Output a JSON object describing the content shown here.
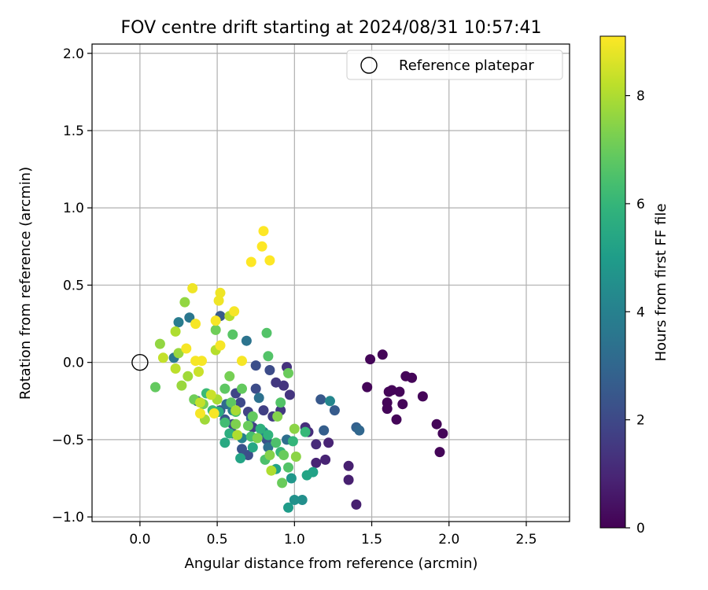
{
  "chart_data": {
    "type": "scatter",
    "title": "FOV centre drift starting at 2024/08/31 10:57:41",
    "xlabel": "Angular distance from reference (arcmin)",
    "ylabel": "Rotation from reference (arcmin)",
    "xlim": [
      -0.31,
      2.78
    ],
    "ylim": [
      -1.03,
      2.06
    ],
    "xticks": [
      0.0,
      0.5,
      1.0,
      1.5,
      2.0,
      2.5
    ],
    "xtick_labels": [
      "0.0",
      "0.5",
      "1.0",
      "1.5",
      "2.0",
      "2.5"
    ],
    "yticks": [
      -1.0,
      -0.5,
      0.0,
      0.5,
      1.0,
      1.5,
      2.0
    ],
    "ytick_labels": [
      "−1.0",
      "−0.5",
      "0.0",
      "0.5",
      "1.0",
      "1.5",
      "2.0"
    ],
    "grid": true,
    "legend": {
      "position": "top-right",
      "entries": [
        {
          "label": "Reference platepar",
          "marker": "open-circle"
        }
      ]
    },
    "reference_point": {
      "x": 0.0,
      "y": 0.0
    },
    "colorbar": {
      "label": "Hours from first FF file",
      "colormap": "viridis",
      "range": [
        0,
        9.1
      ],
      "ticks": [
        0,
        2,
        4,
        6,
        8
      ],
      "tick_labels": [
        "0",
        "2",
        "4",
        "6",
        "8"
      ]
    },
    "series": [
      {
        "color_by": "hours",
        "points": [
          {
            "x": 1.49,
            "y": 0.02,
            "c": 0.1
          },
          {
            "x": 1.57,
            "y": 0.05,
            "c": 0.1
          },
          {
            "x": 1.47,
            "y": -0.16,
            "c": 0.1
          },
          {
            "x": 1.61,
            "y": -0.19,
            "c": 0.1
          },
          {
            "x": 1.63,
            "y": -0.18,
            "c": 0.1
          },
          {
            "x": 1.68,
            "y": -0.19,
            "c": 0.1
          },
          {
            "x": 1.6,
            "y": -0.26,
            "c": 0.1
          },
          {
            "x": 1.6,
            "y": -0.3,
            "c": 0.1
          },
          {
            "x": 1.66,
            "y": -0.37,
            "c": 0.1
          },
          {
            "x": 1.7,
            "y": -0.27,
            "c": 0.1
          },
          {
            "x": 1.72,
            "y": -0.09,
            "c": 0.1
          },
          {
            "x": 1.76,
            "y": -0.1,
            "c": 0.1
          },
          {
            "x": 1.83,
            "y": -0.22,
            "c": 0.1
          },
          {
            "x": 1.92,
            "y": -0.4,
            "c": 0.1
          },
          {
            "x": 1.96,
            "y": -0.46,
            "c": 0.1
          },
          {
            "x": 1.94,
            "y": -0.58,
            "c": 0.1
          },
          {
            "x": 1.4,
            "y": -0.92,
            "c": 0.8
          },
          {
            "x": 1.35,
            "y": -0.76,
            "c": 0.8
          },
          {
            "x": 1.35,
            "y": -0.67,
            "c": 0.8
          },
          {
            "x": 1.2,
            "y": -0.63,
            "c": 0.9
          },
          {
            "x": 1.14,
            "y": -0.65,
            "c": 0.9
          },
          {
            "x": 1.22,
            "y": -0.52,
            "c": 0.9
          },
          {
            "x": 1.14,
            "y": -0.53,
            "c": 1.1
          },
          {
            "x": 1.07,
            "y": -0.42,
            "c": 1.2
          },
          {
            "x": 1.09,
            "y": -0.45,
            "c": 1.2
          },
          {
            "x": 0.95,
            "y": -0.03,
            "c": 1.3
          },
          {
            "x": 0.93,
            "y": -0.15,
            "c": 1.4
          },
          {
            "x": 0.97,
            "y": -0.21,
            "c": 1.4
          },
          {
            "x": 0.88,
            "y": -0.13,
            "c": 1.5
          },
          {
            "x": 0.91,
            "y": -0.31,
            "c": 1.5
          },
          {
            "x": 0.86,
            "y": -0.35,
            "c": 1.6
          },
          {
            "x": 0.8,
            "y": -0.31,
            "c": 1.7
          },
          {
            "x": 0.73,
            "y": -0.42,
            "c": 1.7
          },
          {
            "x": 0.7,
            "y": -0.32,
            "c": 1.8
          },
          {
            "x": 0.62,
            "y": -0.2,
            "c": 1.9
          },
          {
            "x": 0.65,
            "y": -0.26,
            "c": 2.0
          },
          {
            "x": 0.6,
            "y": -0.4,
            "c": 2.0
          },
          {
            "x": 0.75,
            "y": -0.17,
            "c": 2.1
          },
          {
            "x": 0.84,
            "y": -0.05,
            "c": 2.1
          },
          {
            "x": 0.75,
            "y": -0.02,
            "c": 2.2
          },
          {
            "x": 0.7,
            "y": -0.6,
            "c": 2.2
          },
          {
            "x": 0.66,
            "y": -0.56,
            "c": 2.3
          },
          {
            "x": 0.82,
            "y": -0.5,
            "c": 2.3
          },
          {
            "x": 0.52,
            "y": -0.31,
            "c": 2.4
          },
          {
            "x": 0.55,
            "y": -0.37,
            "c": 2.4
          },
          {
            "x": 0.6,
            "y": -0.46,
            "c": 2.5
          },
          {
            "x": 1.17,
            "y": -0.24,
            "c": 2.5
          },
          {
            "x": 1.26,
            "y": -0.31,
            "c": 2.6
          },
          {
            "x": 1.19,
            "y": -0.44,
            "c": 2.7
          },
          {
            "x": 1.4,
            "y": -0.42,
            "c": 2.8
          },
          {
            "x": 1.42,
            "y": -0.44,
            "c": 3.0
          },
          {
            "x": 0.52,
            "y": 0.3,
            "c": 2.6
          },
          {
            "x": 0.37,
            "y": -0.25,
            "c": 3.0
          },
          {
            "x": 0.56,
            "y": -0.27,
            "c": 3.2
          },
          {
            "x": 0.72,
            "y": -0.36,
            "c": 3.2
          },
          {
            "x": 0.83,
            "y": -0.55,
            "c": 3.3
          },
          {
            "x": 0.95,
            "y": -0.5,
            "c": 3.3
          },
          {
            "x": 0.77,
            "y": -0.23,
            "c": 3.4
          },
          {
            "x": 0.69,
            "y": 0.14,
            "c": 3.5
          },
          {
            "x": 0.32,
            "y": 0.29,
            "c": 3.6
          },
          {
            "x": 0.22,
            "y": 0.03,
            "c": 3.6
          },
          {
            "x": 0.25,
            "y": 0.26,
            "c": 3.8
          },
          {
            "x": 0.6,
            "y": -0.31,
            "c": 3.9
          },
          {
            "x": 0.66,
            "y": -0.49,
            "c": 4.0
          },
          {
            "x": 0.8,
            "y": -0.45,
            "c": 4.0
          },
          {
            "x": 1.23,
            "y": -0.25,
            "c": 4.2
          },
          {
            "x": 1.05,
            "y": -0.89,
            "c": 4.5
          },
          {
            "x": 1.0,
            "y": -0.89,
            "c": 4.6
          },
          {
            "x": 0.98,
            "y": -0.75,
            "c": 4.8
          },
          {
            "x": 0.96,
            "y": -0.94,
            "c": 5.0
          },
          {
            "x": 0.88,
            "y": -0.69,
            "c": 5.2
          },
          {
            "x": 1.12,
            "y": -0.71,
            "c": 5.2
          },
          {
            "x": 1.08,
            "y": -0.73,
            "c": 5.3
          },
          {
            "x": 0.65,
            "y": -0.62,
            "c": 5.3
          },
          {
            "x": 0.73,
            "y": -0.55,
            "c": 5.4
          },
          {
            "x": 0.55,
            "y": -0.52,
            "c": 5.5
          },
          {
            "x": 0.51,
            "y": -0.32,
            "c": 5.6
          },
          {
            "x": 0.58,
            "y": -0.46,
            "c": 5.7
          },
          {
            "x": 0.78,
            "y": -0.43,
            "c": 5.8
          },
          {
            "x": 0.83,
            "y": -0.47,
            "c": 5.9
          },
          {
            "x": 0.91,
            "y": -0.58,
            "c": 6.0
          },
          {
            "x": 0.99,
            "y": -0.51,
            "c": 6.0
          },
          {
            "x": 1.07,
            "y": -0.45,
            "c": 6.1
          },
          {
            "x": 0.43,
            "y": -0.2,
            "c": 6.2
          },
          {
            "x": 0.47,
            "y": -0.31,
            "c": 6.2
          },
          {
            "x": 0.55,
            "y": -0.39,
            "c": 6.3
          },
          {
            "x": 0.62,
            "y": -0.32,
            "c": 6.4
          },
          {
            "x": 0.72,
            "y": -0.48,
            "c": 6.4
          },
          {
            "x": 0.81,
            "y": -0.63,
            "c": 6.5
          },
          {
            "x": 0.88,
            "y": -0.52,
            "c": 6.5
          },
          {
            "x": 0.96,
            "y": -0.68,
            "c": 6.6
          },
          {
            "x": 0.82,
            "y": 0.19,
            "c": 6.6
          },
          {
            "x": 0.83,
            "y": 0.04,
            "c": 6.6
          },
          {
            "x": 0.91,
            "y": -0.26,
            "c": 6.6
          },
          {
            "x": 0.6,
            "y": 0.18,
            "c": 6.7
          },
          {
            "x": 0.55,
            "y": -0.17,
            "c": 6.8
          },
          {
            "x": 0.59,
            "y": -0.26,
            "c": 6.8
          },
          {
            "x": 0.66,
            "y": -0.17,
            "c": 6.9
          },
          {
            "x": 0.73,
            "y": -0.35,
            "c": 6.9
          },
          {
            "x": 0.1,
            "y": -0.16,
            "c": 6.9
          },
          {
            "x": 0.93,
            "y": -0.6,
            "c": 7.0
          },
          {
            "x": 0.96,
            "y": -0.07,
            "c": 7.0
          },
          {
            "x": 0.7,
            "y": -0.41,
            "c": 7.0
          },
          {
            "x": 0.92,
            "y": -0.78,
            "c": 7.0
          },
          {
            "x": 0.49,
            "y": 0.21,
            "c": 7.1
          },
          {
            "x": 0.35,
            "y": -0.24,
            "c": 7.1
          },
          {
            "x": 0.41,
            "y": -0.27,
            "c": 7.2
          },
          {
            "x": 0.58,
            "y": -0.09,
            "c": 7.2
          },
          {
            "x": 0.62,
            "y": -0.4,
            "c": 7.3
          },
          {
            "x": 0.76,
            "y": -0.49,
            "c": 7.3
          },
          {
            "x": 0.84,
            "y": -0.6,
            "c": 7.4
          },
          {
            "x": 0.89,
            "y": -0.35,
            "c": 7.4
          },
          {
            "x": 1.0,
            "y": -0.43,
            "c": 7.5
          },
          {
            "x": 1.01,
            "y": -0.61,
            "c": 7.5
          },
          {
            "x": 0.29,
            "y": 0.39,
            "c": 7.6
          },
          {
            "x": 0.13,
            "y": 0.12,
            "c": 7.6
          },
          {
            "x": 0.25,
            "y": 0.06,
            "c": 7.7
          },
          {
            "x": 0.27,
            "y": -0.15,
            "c": 7.7
          },
          {
            "x": 0.31,
            "y": -0.09,
            "c": 7.8
          },
          {
            "x": 0.42,
            "y": -0.37,
            "c": 7.8
          },
          {
            "x": 0.5,
            "y": -0.24,
            "c": 7.9
          },
          {
            "x": 0.62,
            "y": -0.31,
            "c": 7.9
          },
          {
            "x": 0.63,
            "y": -0.47,
            "c": 8.0
          },
          {
            "x": 0.85,
            "y": -0.7,
            "c": 8.0
          },
          {
            "x": 0.23,
            "y": 0.2,
            "c": 8.0
          },
          {
            "x": 0.58,
            "y": 0.3,
            "c": 8.1
          },
          {
            "x": 0.49,
            "y": 0.08,
            "c": 8.1
          },
          {
            "x": 0.23,
            "y": -0.04,
            "c": 8.2
          },
          {
            "x": 0.15,
            "y": 0.03,
            "c": 8.3
          },
          {
            "x": 0.39,
            "y": -0.26,
            "c": 8.3
          },
          {
            "x": 0.46,
            "y": -0.21,
            "c": 8.4
          },
          {
            "x": 0.38,
            "y": -0.06,
            "c": 8.4
          },
          {
            "x": 0.34,
            "y": 0.48,
            "c": 8.9
          },
          {
            "x": 0.52,
            "y": 0.45,
            "c": 8.9
          },
          {
            "x": 0.51,
            "y": 0.4,
            "c": 8.9
          },
          {
            "x": 0.61,
            "y": 0.33,
            "c": 9.0
          },
          {
            "x": 0.36,
            "y": 0.25,
            "c": 9.0
          },
          {
            "x": 0.49,
            "y": 0.27,
            "c": 9.0
          },
          {
            "x": 0.52,
            "y": 0.11,
            "c": 9.0
          },
          {
            "x": 0.3,
            "y": 0.09,
            "c": 9.0
          },
          {
            "x": 0.4,
            "y": 0.01,
            "c": 9.0
          },
          {
            "x": 0.36,
            "y": 0.01,
            "c": 9.0
          },
          {
            "x": 0.66,
            "y": 0.01,
            "c": 9.0
          },
          {
            "x": 0.39,
            "y": -0.33,
            "c": 9.0
          },
          {
            "x": 0.48,
            "y": -0.33,
            "c": 9.0
          },
          {
            "x": 0.72,
            "y": 0.65,
            "c": 9.1
          },
          {
            "x": 0.79,
            "y": 0.75,
            "c": 9.1
          },
          {
            "x": 0.8,
            "y": 0.85,
            "c": 9.1
          },
          {
            "x": 0.84,
            "y": 0.66,
            "c": 9.1
          }
        ]
      }
    ]
  }
}
